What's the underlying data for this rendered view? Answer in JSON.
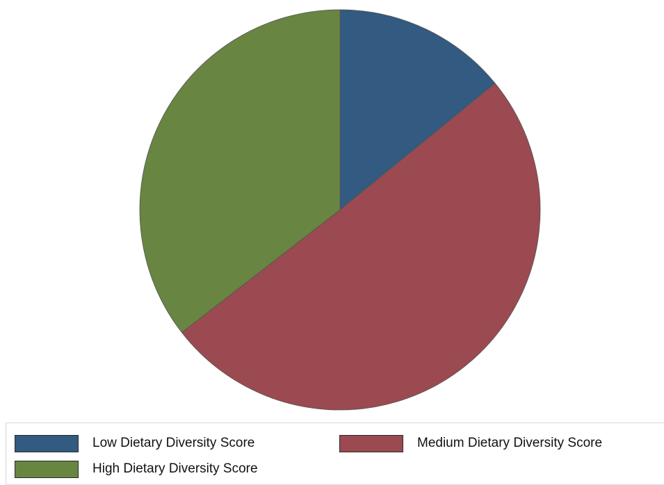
{
  "chart_data": {
    "type": "pie",
    "title": "",
    "legend_position": "bottom",
    "slices": [
      {
        "label": "Low Dietary Diversity Score",
        "value": 14.1,
        "color": "#335a80"
      },
      {
        "label": "Medium Dietary Diversity Score",
        "value": 50.4,
        "color": "#9a4a50"
      },
      {
        "label": "High Dietary Diversity Score",
        "value": 35.5,
        "color": "#688542"
      }
    ]
  }
}
